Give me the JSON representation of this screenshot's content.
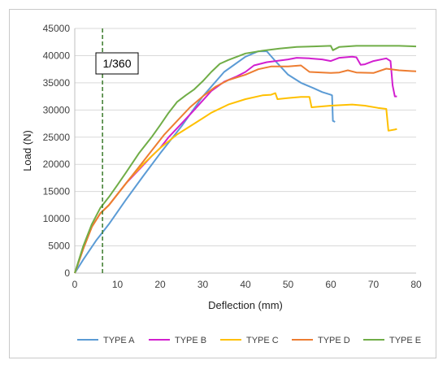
{
  "chart_data": {
    "type": "line",
    "xlabel": "Deflection (mm)",
    "ylabel": "Load (N)",
    "xlim": [
      0,
      80
    ],
    "ylim": [
      0,
      45000
    ],
    "xticks": [
      0,
      10,
      20,
      30,
      40,
      50,
      60,
      70,
      80
    ],
    "yticks": [
      0,
      5000,
      10000,
      15000,
      20000,
      25000,
      30000,
      35000,
      40000,
      45000
    ],
    "grid": "horizontal",
    "legend_position": "bottom",
    "annotation": {
      "label": "1/360",
      "x": 6.5,
      "line_color": "#3a7a2a",
      "line_style": "dashed"
    },
    "series": [
      {
        "name": "TYPE A",
        "color": "#5b9bd5",
        "points": [
          [
            0,
            0
          ],
          [
            2,
            2500
          ],
          [
            5,
            6000
          ],
          [
            8,
            9000
          ],
          [
            12,
            13500
          ],
          [
            16,
            17800
          ],
          [
            20,
            22000
          ],
          [
            25,
            27000
          ],
          [
            30,
            32500
          ],
          [
            35,
            37000
          ],
          [
            40,
            39800
          ],
          [
            43,
            40800
          ],
          [
            45,
            40800
          ],
          [
            47,
            39000
          ],
          [
            50,
            36500
          ],
          [
            53,
            35000
          ],
          [
            56,
            34000
          ],
          [
            58,
            33300
          ],
          [
            60,
            32800
          ],
          [
            60.3,
            32700
          ],
          [
            60.5,
            28000
          ],
          [
            61,
            27800
          ]
        ]
      },
      {
        "name": "TYPE B",
        "color": "#d21fcf",
        "points": [
          [
            0,
            0
          ],
          [
            2,
            4500
          ],
          [
            4,
            8500
          ],
          [
            6,
            11000
          ],
          [
            8,
            12500
          ],
          [
            10,
            14500
          ],
          [
            12,
            16500
          ],
          [
            15,
            19000
          ],
          [
            18,
            21500
          ],
          [
            20,
            23000
          ],
          [
            22,
            25000
          ],
          [
            25,
            27500
          ],
          [
            28,
            30000
          ],
          [
            32,
            33500
          ],
          [
            35,
            35200
          ],
          [
            38,
            36200
          ],
          [
            40,
            37000
          ],
          [
            42,
            38200
          ],
          [
            45,
            38800
          ],
          [
            48,
            39100
          ],
          [
            50,
            39300
          ],
          [
            52,
            39600
          ],
          [
            55,
            39500
          ],
          [
            58,
            39300
          ],
          [
            60,
            39000
          ],
          [
            62,
            39600
          ],
          [
            65,
            39800
          ],
          [
            66,
            39700
          ],
          [
            67,
            38300
          ],
          [
            68,
            38400
          ],
          [
            70,
            39000
          ],
          [
            73,
            39500
          ],
          [
            74,
            39000
          ],
          [
            74.5,
            34500
          ],
          [
            75,
            32500
          ],
          [
            75.5,
            32500
          ]
        ]
      },
      {
        "name": "TYPE C",
        "color": "#ffc000",
        "points": [
          [
            0,
            0
          ],
          [
            2,
            4500
          ],
          [
            4,
            8500
          ],
          [
            6,
            11000
          ],
          [
            8,
            12500
          ],
          [
            10,
            14500
          ],
          [
            13,
            17500
          ],
          [
            16,
            20000
          ],
          [
            20,
            23000
          ],
          [
            24,
            25500
          ],
          [
            28,
            27500
          ],
          [
            32,
            29500
          ],
          [
            36,
            31000
          ],
          [
            40,
            32000
          ],
          [
            44,
            32700
          ],
          [
            46,
            32800
          ],
          [
            47,
            33100
          ],
          [
            47.5,
            32000
          ],
          [
            50,
            32200
          ],
          [
            53,
            32400
          ],
          [
            55,
            32400
          ],
          [
            55.5,
            30500
          ],
          [
            60,
            30800
          ],
          [
            65,
            31000
          ],
          [
            68,
            30800
          ],
          [
            71,
            30400
          ],
          [
            73,
            30200
          ],
          [
            73.5,
            26200
          ],
          [
            75,
            26400
          ],
          [
            75.5,
            26500
          ]
        ]
      },
      {
        "name": "TYPE D",
        "color": "#ed7d31",
        "points": [
          [
            0,
            0
          ],
          [
            2,
            4500
          ],
          [
            4,
            8500
          ],
          [
            6,
            11000
          ],
          [
            8,
            12500
          ],
          [
            10,
            14500
          ],
          [
            12,
            16500
          ],
          [
            15,
            19500
          ],
          [
            18,
            22500
          ],
          [
            21,
            25500
          ],
          [
            24,
            28000
          ],
          [
            27,
            30500
          ],
          [
            30,
            32500
          ],
          [
            33,
            34300
          ],
          [
            36,
            35500
          ],
          [
            40,
            36500
          ],
          [
            43,
            37500
          ],
          [
            46,
            38000
          ],
          [
            50,
            38000
          ],
          [
            53,
            38200
          ],
          [
            55,
            37000
          ],
          [
            58,
            36900
          ],
          [
            60,
            36800
          ],
          [
            62,
            36900
          ],
          [
            64,
            37300
          ],
          [
            66,
            36900
          ],
          [
            70,
            36800
          ],
          [
            73,
            37600
          ],
          [
            76,
            37300
          ],
          [
            80,
            37100
          ]
        ]
      },
      {
        "name": "TYPE E",
        "color": "#70ad47",
        "points": [
          [
            0,
            0
          ],
          [
            2,
            5000
          ],
          [
            4,
            9000
          ],
          [
            6,
            12000
          ],
          [
            8,
            14000
          ],
          [
            10,
            16200
          ],
          [
            12,
            18500
          ],
          [
            15,
            22000
          ],
          [
            18,
            25000
          ],
          [
            20,
            27200
          ],
          [
            22,
            29500
          ],
          [
            24,
            31500
          ],
          [
            26,
            32700
          ],
          [
            28,
            33800
          ],
          [
            30,
            35300
          ],
          [
            32,
            37000
          ],
          [
            34,
            38500
          ],
          [
            36,
            39200
          ],
          [
            38,
            39800
          ],
          [
            40,
            40400
          ],
          [
            44,
            40900
          ],
          [
            48,
            41300
          ],
          [
            52,
            41600
          ],
          [
            56,
            41700
          ],
          [
            60,
            41800
          ],
          [
            60.5,
            41000
          ],
          [
            62,
            41600
          ],
          [
            66,
            41800
          ],
          [
            72,
            41800
          ],
          [
            76,
            41800
          ],
          [
            80,
            41700
          ]
        ]
      }
    ]
  }
}
